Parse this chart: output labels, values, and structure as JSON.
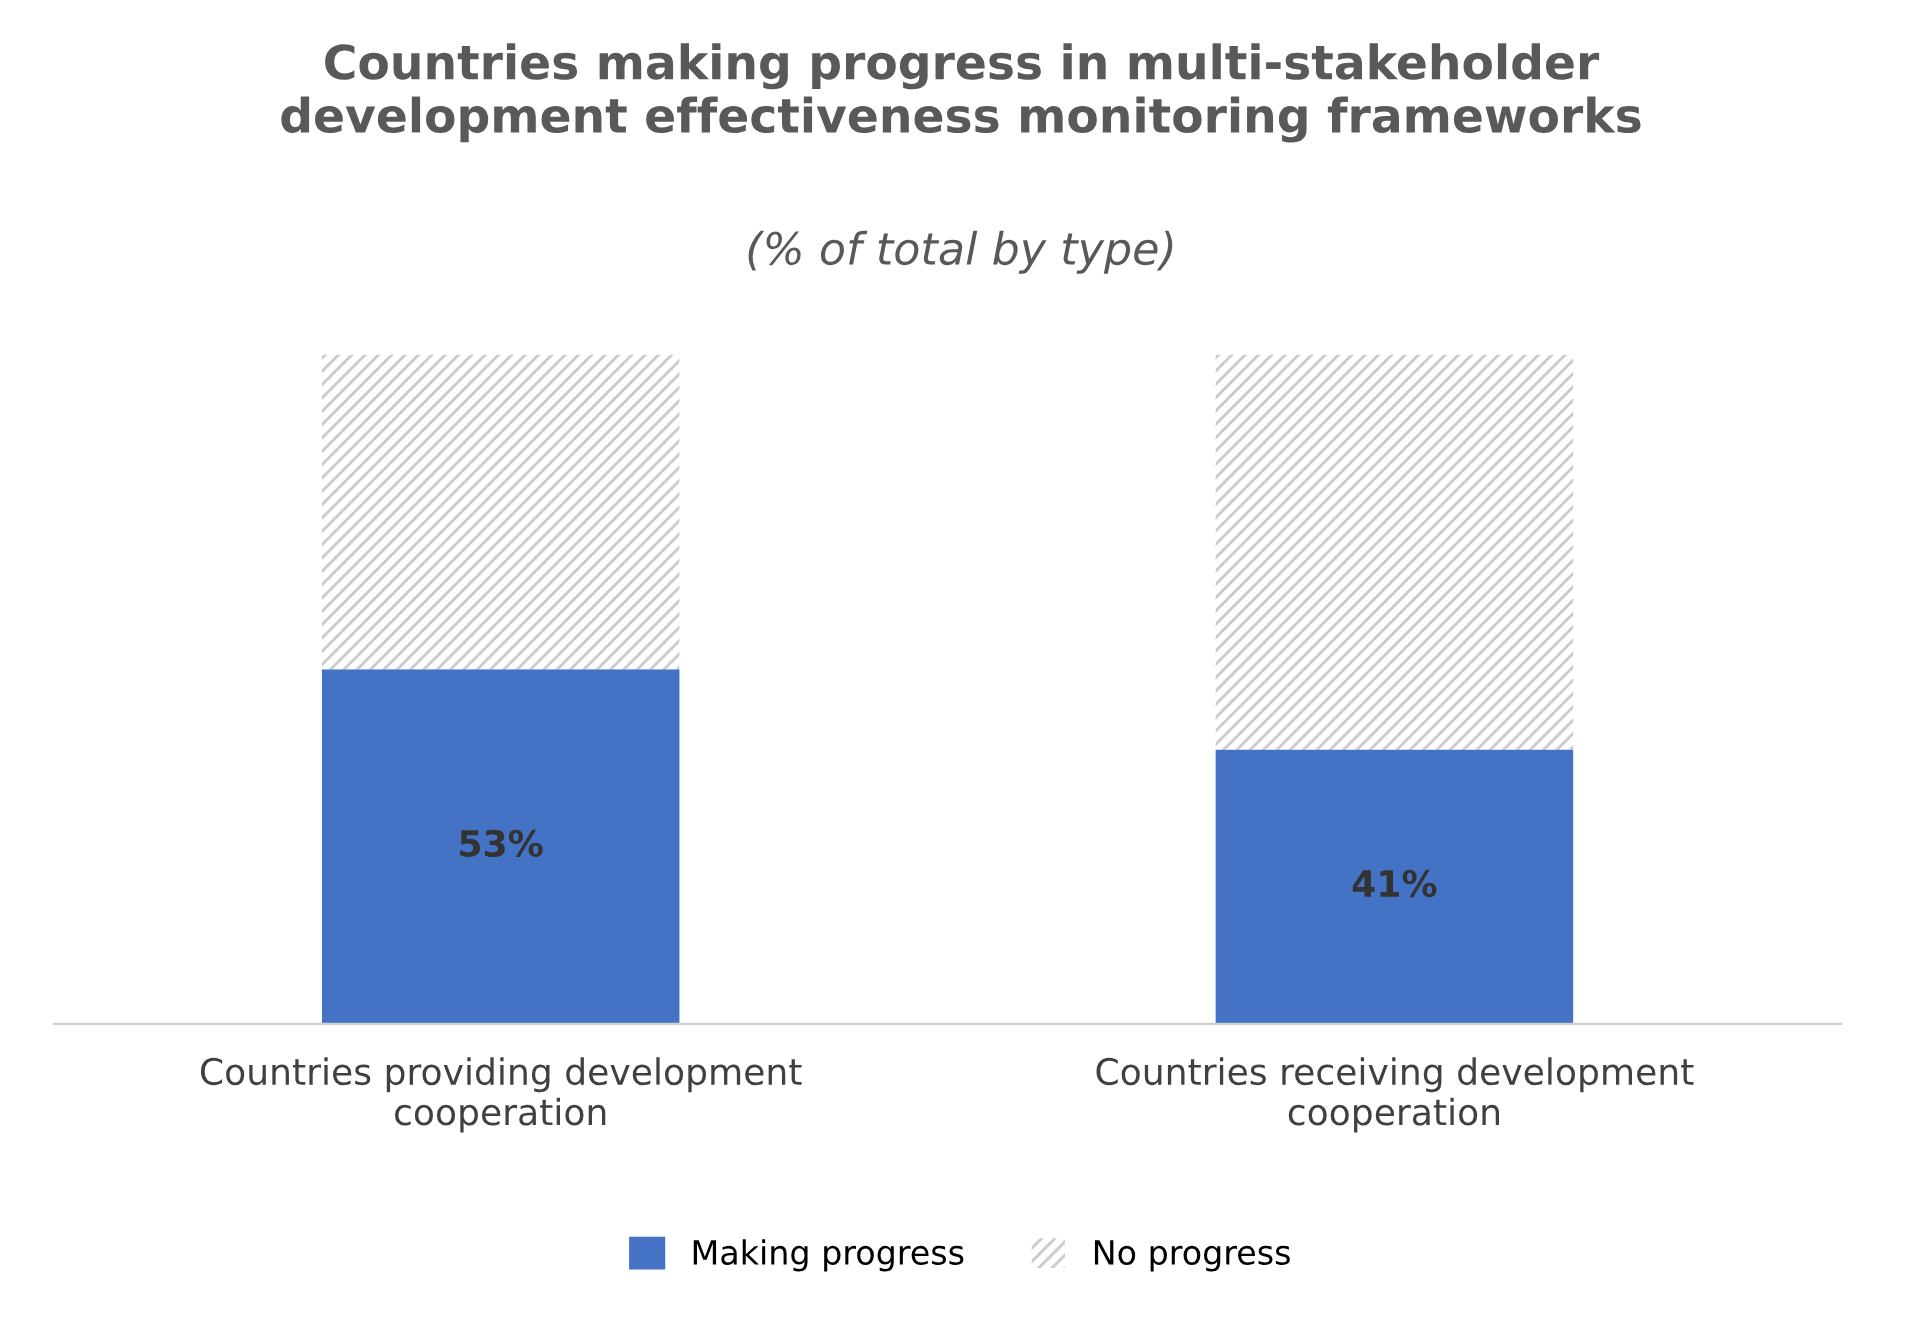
{
  "chart_data": {
    "type": "bar",
    "stacked": true,
    "title": "Countries making progress in multi-stakeholder\ndevelopment effectiveness monitoring frameworks",
    "subtitle": "(% of total by type)",
    "categories": [
      "Countries providing development\ncooperation",
      "Countries receiving development\ncooperation"
    ],
    "series": [
      {
        "name": "Making progress",
        "color": "#4472c4",
        "values": [
          53,
          41
        ],
        "value_labels": [
          "53%",
          "41%"
        ]
      },
      {
        "name": "No progress",
        "color": "#c8c8c8",
        "values": [
          47,
          59
        ]
      }
    ],
    "ylim": [
      0,
      100
    ],
    "tick_labels": "x",
    "legend": "bottom",
    "grid": false
  }
}
